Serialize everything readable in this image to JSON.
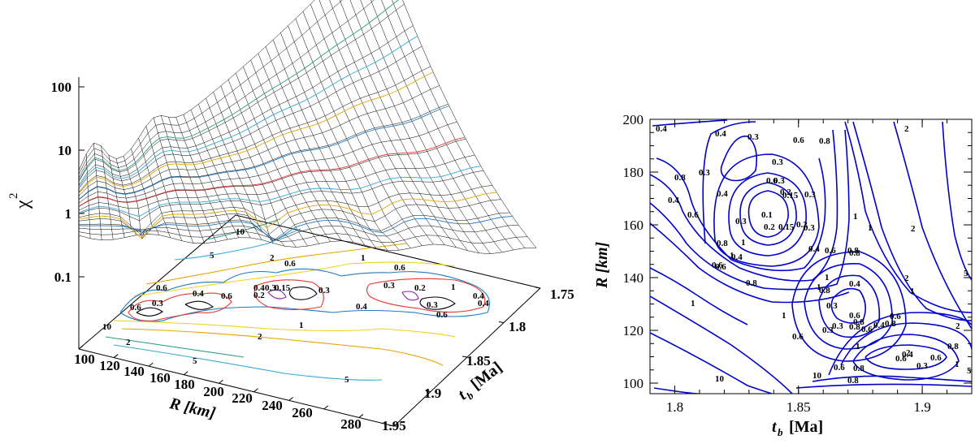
{
  "chart_data": [
    {
      "type": "surface",
      "ylabel": "χ",
      "ylabel_sup": "2",
      "z_scale": "log",
      "z_ticks": [
        "100",
        "10",
        "1",
        "0.1"
      ],
      "x_axis": {
        "label": "R [km]",
        "ticks": [
          "100",
          "120",
          "140",
          "160",
          "180",
          "200",
          "220",
          "240",
          "260",
          "280"
        ]
      },
      "y_axis": {
        "label_t": "t",
        "label_sub": "b",
        "label_unit": "[Ma]",
        "ticks": [
          "1.75",
          "1.8",
          "1.85",
          "1.9",
          "1.95"
        ]
      },
      "contour_levels": [
        0.1,
        0.15,
        0.2,
        0.3,
        0.4,
        0.6,
        1,
        2,
        5,
        10
      ],
      "contour_labels": [
        "10",
        "5",
        "2",
        "1",
        "0.6",
        "0.4",
        "0.3",
        "0.15",
        "0.2",
        "0.3",
        "0.4",
        "0.6",
        "1",
        "2",
        "5",
        "0.6",
        "0.3",
        "0.4",
        "0.6",
        "0.6",
        "1",
        "0.4",
        "0.3",
        "0.2",
        "0.3",
        "0.4",
        "0.6",
        "2",
        "10",
        "5"
      ]
    },
    {
      "type": "contour",
      "xlabel_t": "t",
      "xlabel_sub": "b",
      "xlabel_unit": "[Ma]",
      "ylabel": "R [km]",
      "x_ticks": [
        "1.8",
        "1.85",
        "1.9"
      ],
      "y_ticks": [
        "200",
        "180",
        "160",
        "140",
        "120",
        "100"
      ],
      "xlim": [
        1.79,
        1.92
      ],
      "ylim": [
        96,
        200
      ],
      "contour_color": "#0000cc",
      "contour_labels": [
        "0.4",
        "0.4",
        "0.3",
        "0.6",
        "0.8",
        "2",
        "0.3",
        "0.4",
        "0.6",
        "0.3",
        "0.3",
        "0.2",
        "0.15",
        "0.3",
        "0.1",
        "1",
        "0.3",
        "0.2",
        "0.15",
        "0.2",
        "0.3",
        "0.4",
        "0.6",
        "0.8",
        "1",
        "2",
        "0.8",
        "1",
        "1",
        "0.4",
        "0.6",
        "0.8",
        "0.4",
        "0.6",
        "0.8",
        "1",
        "0.6",
        "0.8",
        "1",
        "1",
        "0.8",
        "0.4",
        "0.3",
        "0.6",
        "0.8",
        "0.3",
        "0.4",
        "0.6",
        "0.8",
        "1",
        "0.6",
        "1",
        "0.6",
        "0.3",
        "0.8",
        "2",
        "2",
        "0.6",
        "0.3",
        "0.4",
        "0.6",
        "0.8",
        "0.6",
        "0.8",
        "0.8",
        "1",
        "2",
        "5",
        "5",
        "10",
        "10",
        "1"
      ]
    }
  ]
}
